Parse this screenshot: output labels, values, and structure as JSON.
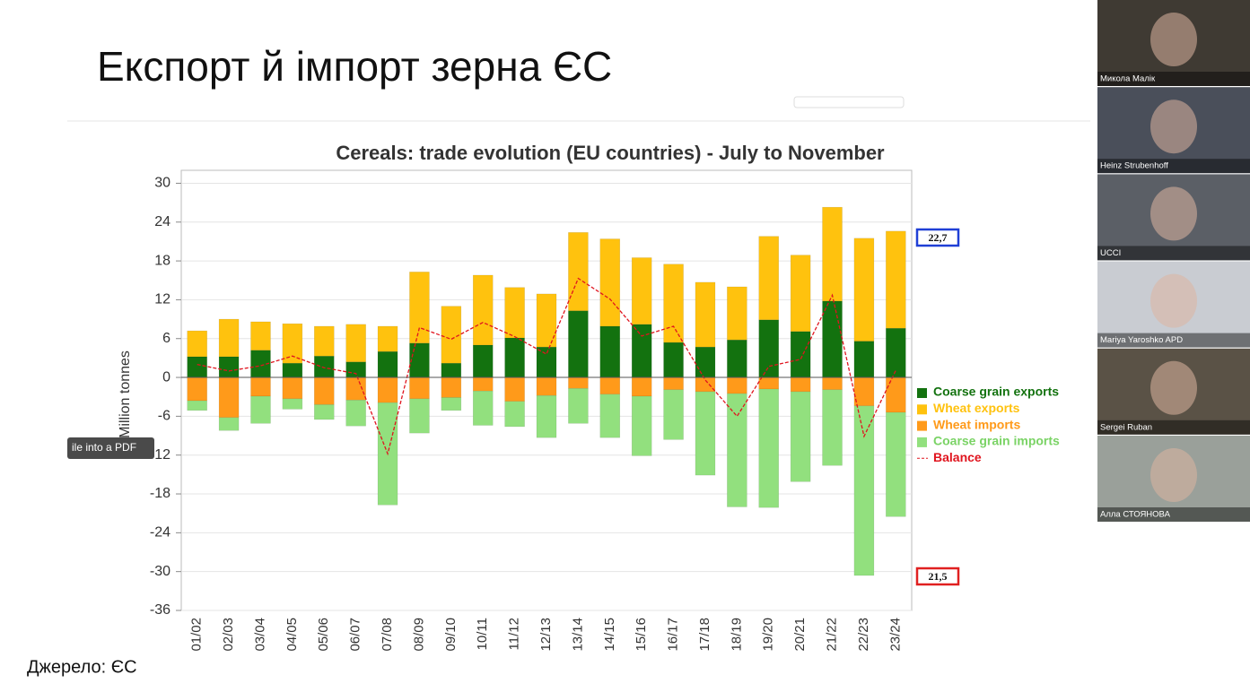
{
  "slide": {
    "title": "Експорт й імпорт зерна ЄС",
    "source": "Джерело: ЄС",
    "tooltip": "ile into a PDF"
  },
  "chart_data": {
    "type": "bar",
    "stacked": true,
    "title": "Cereals: trade evolution (EU countries) - July to November",
    "y_label": "Million tonnes",
    "categories": [
      "01/02",
      "02/03",
      "03/04",
      "04/05",
      "05/06",
      "06/07",
      "07/08",
      "08/09",
      "09/10",
      "10/11",
      "11/12",
      "12/13",
      "13/14",
      "14/15",
      "15/16",
      "16/17",
      "17/18",
      "18/19",
      "19/20",
      "20/21",
      "21/22",
      "22/23",
      "23/24"
    ],
    "series": [
      {
        "name": "Coarse grain exports",
        "color": "#13720f",
        "values": [
          3.2,
          3.2,
          4.2,
          2.2,
          3.3,
          2.4,
          4.0,
          5.3,
          2.2,
          5.0,
          6.1,
          4.7,
          10.3,
          7.9,
          8.2,
          5.4,
          4.7,
          5.8,
          8.9,
          7.1,
          11.8,
          5.6,
          7.6
        ]
      },
      {
        "name": "Wheat exports",
        "color": "#ffc20e",
        "values": [
          4.0,
          5.8,
          4.4,
          6.1,
          4.6,
          5.8,
          3.9,
          11.0,
          8.8,
          10.8,
          7.8,
          8.2,
          12.1,
          13.5,
          10.3,
          12.1,
          10.0,
          8.2,
          12.9,
          11.8,
          14.5,
          15.9,
          15.0
        ]
      },
      {
        "name": "Wheat imports",
        "color": "#ff9a1a",
        "values": [
          -3.6,
          -6.2,
          -2.9,
          -3.3,
          -4.2,
          -3.5,
          -3.9,
          -3.3,
          -3.1,
          -2.1,
          -3.7,
          -2.8,
          -1.7,
          -2.6,
          -2.9,
          -1.9,
          -2.2,
          -2.5,
          -1.8,
          -2.2,
          -1.9,
          -4.4,
          -5.4
        ]
      },
      {
        "name": "Coarse grain imports",
        "color": "#92e07e",
        "values": [
          -1.5,
          -2.0,
          -4.2,
          -1.6,
          -2.3,
          -4.0,
          -15.8,
          -5.3,
          -2.0,
          -5.3,
          -3.9,
          -6.5,
          -5.4,
          -6.7,
          -9.2,
          -7.7,
          -12.9,
          -17.5,
          -18.3,
          -13.9,
          -11.7,
          -26.2,
          -16.1
        ]
      },
      {
        "name": "Balance",
        "type": "line",
        "dashed": true,
        "color": "#e0141e",
        "values": [
          2.0,
          1.0,
          1.8,
          3.3,
          1.5,
          0.6,
          -11.8,
          7.7,
          5.9,
          8.5,
          6.3,
          3.6,
          15.3,
          12.1,
          6.4,
          7.9,
          -0.4,
          -6.0,
          1.7,
          2.8,
          12.7,
          -9.1,
          1.1
        ]
      }
    ],
    "ylim": [
      -36,
      32
    ],
    "yticks": [
      -36,
      -30,
      -24,
      -18,
      -12,
      -6,
      0,
      6,
      12,
      18,
      24,
      30
    ],
    "grid": true,
    "legend": "right",
    "annotations": [
      {
        "text": "22,7",
        "color": "#1f3fd6"
      },
      {
        "text": "21,5",
        "color": "#e02020"
      }
    ]
  },
  "participants": [
    "Микола Малік",
    "Heinz Strubenhoff",
    "UCCI",
    "Mariya Yaroshko APD",
    "Sergei Ruban",
    "Алла СТОЯНОВА"
  ]
}
